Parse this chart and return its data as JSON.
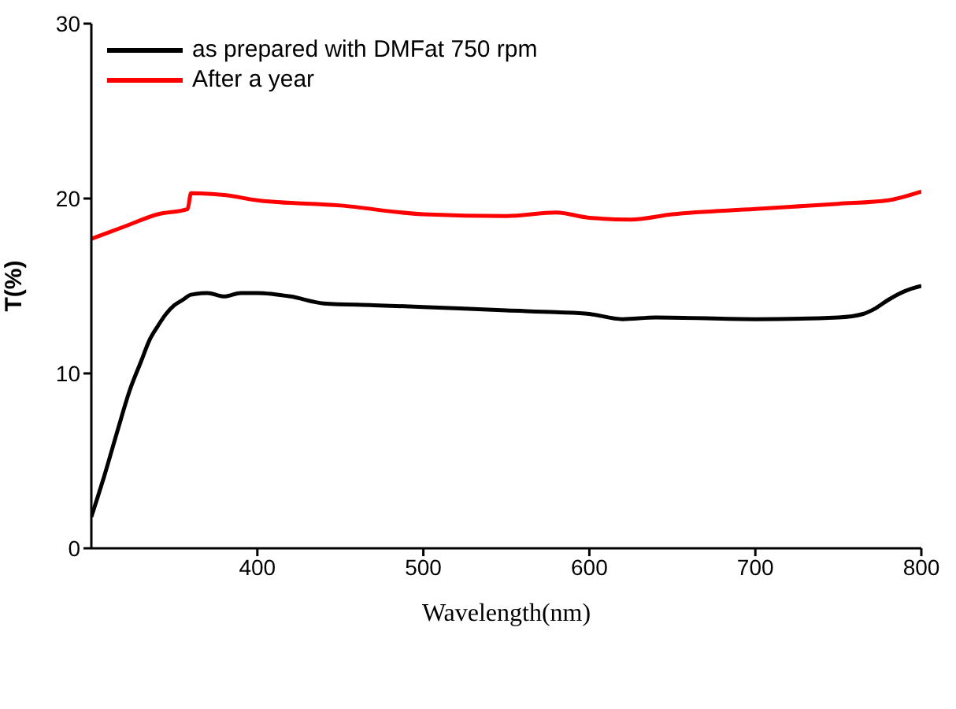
{
  "chart_data": {
    "type": "line",
    "xlabel": "Wavelength(nm)",
    "ylabel": "T(%)",
    "xlim": [
      300,
      800
    ],
    "xticks": [
      400,
      500,
      600,
      700,
      800
    ],
    "ylim": [
      0,
      30
    ],
    "yticks": [
      0,
      10,
      20,
      30
    ],
    "grid": false,
    "legend": "top left",
    "marker": "none",
    "line_style": "solid",
    "series": [
      {
        "name": "as prepared with DMFat 750 rpm",
        "color": "#000000",
        "x": [
          300,
          308,
          316,
          323,
          330,
          335,
          340,
          345,
          350,
          355,
          360,
          370,
          380,
          390,
          400,
          420,
          440,
          470,
          500,
          550,
          580,
          600,
          620,
          640,
          700,
          750,
          765,
          772,
          780,
          790,
          800
        ],
        "values": [
          1.8,
          4.2,
          6.8,
          9.0,
          10.7,
          11.9,
          12.7,
          13.4,
          13.9,
          14.2,
          14.5,
          14.6,
          14.4,
          14.6,
          14.6,
          14.4,
          14.0,
          13.9,
          13.8,
          13.6,
          13.5,
          13.4,
          13.1,
          13.2,
          13.1,
          13.2,
          13.4,
          13.7,
          14.2,
          14.7,
          15.0
        ]
      },
      {
        "name": "After a year",
        "color": "#ff0000",
        "x": [
          300,
          320,
          340,
          358,
          360,
          380,
          400,
          450,
          500,
          550,
          580,
          600,
          625,
          650,
          700,
          750,
          780,
          800
        ],
        "values": [
          17.7,
          18.4,
          19.1,
          19.4,
          20.3,
          20.2,
          19.9,
          19.6,
          19.1,
          19.0,
          19.2,
          18.9,
          18.8,
          19.1,
          19.4,
          19.7,
          19.9,
          20.4
        ]
      }
    ]
  }
}
